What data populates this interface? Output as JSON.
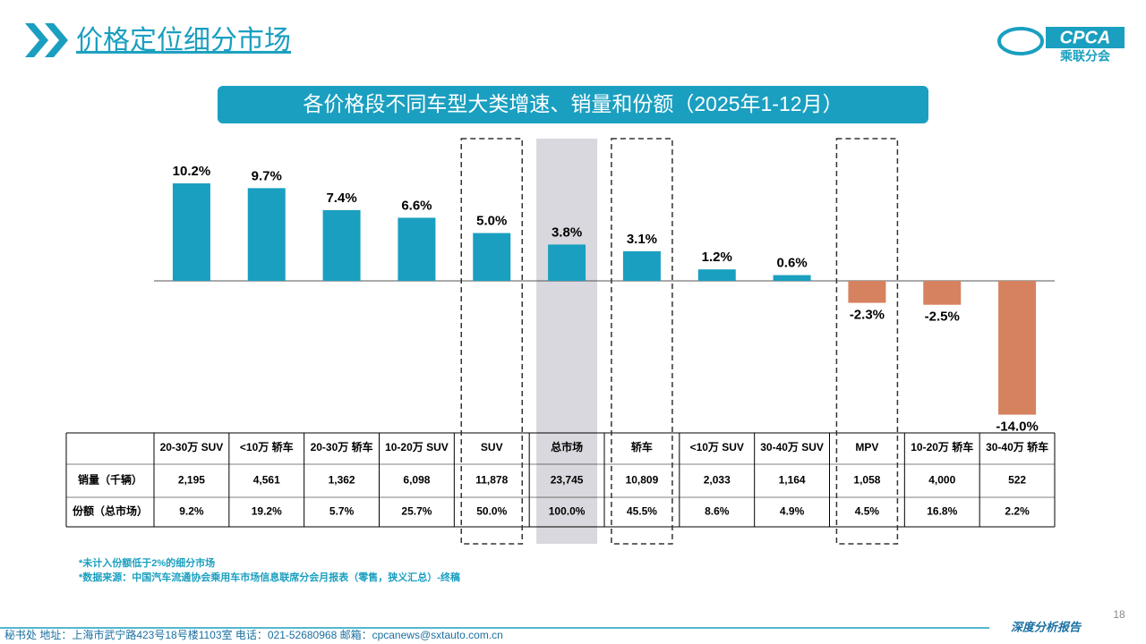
{
  "header": {
    "title": "价格定位细分市场"
  },
  "logo": {
    "name": "CPCA",
    "subtitle": "乘联分会"
  },
  "chart_data": {
    "type": "bar",
    "title": "各价格段不同车型大类增速、销量和份额（2025年1-12月）",
    "categories": [
      "20-30万 SUV",
      "<10万 轿车",
      "20-30万 轿车",
      "10-20万 SUV",
      "SUV",
      "总市场",
      "轿车",
      "<10万 SUV",
      "30-40万 SUV",
      "MPV",
      "10-20万 轿车",
      "30-40万 轿车"
    ],
    "values": [
      10.2,
      9.7,
      7.4,
      6.6,
      5.0,
      3.8,
      3.1,
      1.2,
      0.6,
      -2.3,
      -2.5,
      -14.0
    ],
    "value_labels": [
      "10.2%",
      "9.7%",
      "7.4%",
      "6.6%",
      "5.0%",
      "3.8%",
      "3.1%",
      "1.2%",
      "0.6%",
      "-2.3%",
      "-2.5%",
      "-14.0%"
    ],
    "colors": {
      "positive": "#1a9fc0",
      "negative": "#d6825f"
    },
    "dashed_boxes": [
      4,
      6,
      9
    ],
    "shaded": [
      5
    ]
  },
  "table": {
    "rows": [
      [
        "销量（千辆）",
        "2,195",
        "4,561",
        "1,362",
        "6,098",
        "11,878",
        "23,745",
        "10,809",
        "2,033",
        "1,164",
        "1,058",
        "4,000",
        "522"
      ],
      [
        "份额（总市场）",
        "9.2%",
        "19.2%",
        "5.7%",
        "25.7%",
        "50.0%",
        "100.0%",
        "45.5%",
        "8.6%",
        "4.9%",
        "4.5%",
        "16.8%",
        "2.2%"
      ]
    ]
  },
  "notes": [
    "*未计入份额低于2%的细分市场",
    "*数据来源：中国汽车流通协会乘用车市场信息联席分会月报表（零售，狭义汇总）-终稿"
  ],
  "footer": {
    "address": "秘书处   地址：上海市武宁路423号18号楼1103室   电话：021-52680968   邮箱：cpcanews@sxtauto.com.cn",
    "page": "18",
    "tag": "深度分析报告"
  }
}
